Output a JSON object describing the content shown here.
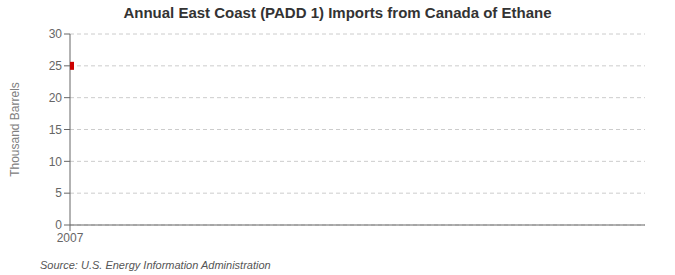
{
  "chart_data": {
    "type": "scatter",
    "title": "Annual East Coast (PADD 1) Imports from Canada of Ethane",
    "y_label": "Thousand Barrels",
    "annotation": "Source: U.S. Energy Information Administration",
    "x": [
      2007
    ],
    "values": [
      25
    ],
    "color": "#cc0000",
    "marker": "square",
    "xlim": [
      2007,
      2008.5
    ],
    "xticks": [
      2007
    ],
    "ylim": [
      0,
      30
    ],
    "yticks": [
      0,
      5,
      10,
      15,
      20,
      25,
      30
    ],
    "grid": true
  }
}
